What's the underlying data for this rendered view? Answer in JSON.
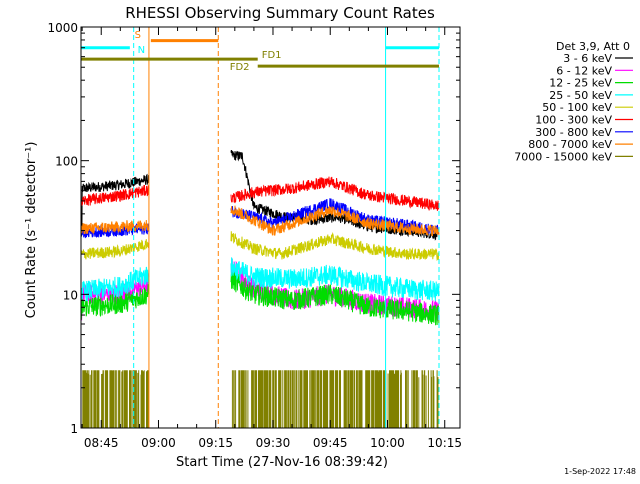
{
  "chart_data": {
    "type": "line",
    "title": "RHESSI Observing Summary Count Rates",
    "xlabel": "Start Time (27-Nov-16 08:39:42)",
    "ylabel": "Count Rate (s⁻¹ detector⁻¹)",
    "yscale": "log",
    "ylim": [
      1,
      1000
    ],
    "xlim_minutes": [
      "08:39:42",
      "10:19:00"
    ],
    "x_tick_labels": [
      "08:45",
      "09:00",
      "09:15",
      "09:30",
      "09:45",
      "10:00",
      "10:15"
    ],
    "y_tick_labels": [
      "1",
      "10",
      "100",
      "1000"
    ],
    "legend": {
      "header": "Det 3,9, Att 0",
      "position": "right",
      "entries": [
        {
          "label": "3 - 6 keV",
          "color": "#000000"
        },
        {
          "label": "6 - 12 keV",
          "color": "#ff00ff"
        },
        {
          "label": "12 - 25 keV",
          "color": "#00dd00"
        },
        {
          "label": "25 - 50 keV",
          "color": "#00ffff"
        },
        {
          "label": "50 - 100 keV",
          "color": "#cccc00"
        },
        {
          "label": "100 - 300 keV",
          "color": "#ff0000"
        },
        {
          "label": "300 - 800 keV",
          "color": "#0000ff"
        },
        {
          "label": "800 - 7000 keV",
          "color": "#ff8000"
        },
        {
          "label": "7000 - 15000 keV",
          "color": "#808000"
        }
      ]
    },
    "annotations": {
      "S": "S",
      "N": "N",
      "FD1": "FD1",
      "FD2": "FD2",
      "timestamp": "1-Sep-2022 17:48"
    },
    "segments": [
      {
        "start": "08:39:42",
        "end": "08:57:30"
      },
      {
        "start": "09:19:00",
        "end": "10:13:30"
      }
    ],
    "series": [
      {
        "name": "3 - 6 keV",
        "color": "#000000",
        "points": [
          [
            "08:40",
            62
          ],
          [
            "08:50",
            66
          ],
          [
            "08:57",
            72
          ],
          [
            "09:19",
            110
          ],
          [
            "09:22",
            108
          ],
          [
            "09:25",
            45
          ],
          [
            "09:33",
            38
          ],
          [
            "09:40",
            36
          ],
          [
            "09:47",
            38
          ],
          [
            "09:55",
            32
          ],
          [
            "10:05",
            30
          ],
          [
            "10:13",
            28
          ]
        ]
      },
      {
        "name": "6 - 12 keV",
        "color": "#ff00ff",
        "points": [
          [
            "08:40",
            10
          ],
          [
            "08:50",
            10
          ],
          [
            "08:57",
            12
          ],
          [
            "09:19",
            16
          ],
          [
            "09:25",
            11
          ],
          [
            "09:35",
            9
          ],
          [
            "09:45",
            10
          ],
          [
            "09:55",
            8.5
          ],
          [
            "10:05",
            8
          ],
          [
            "10:13",
            7.5
          ]
        ]
      },
      {
        "name": "12 - 25 keV",
        "color": "#00dd00",
        "points": [
          [
            "08:40",
            8
          ],
          [
            "08:50",
            8.5
          ],
          [
            "08:57",
            10
          ],
          [
            "09:19",
            13
          ],
          [
            "09:25",
            10
          ],
          [
            "09:35",
            9
          ],
          [
            "09:45",
            10
          ],
          [
            "09:55",
            8
          ],
          [
            "10:05",
            7.5
          ],
          [
            "10:13",
            7
          ]
        ]
      },
      {
        "name": "25 - 50 keV",
        "color": "#00ffff",
        "points": [
          [
            "08:40",
            10.5
          ],
          [
            "08:50",
            11.5
          ],
          [
            "08:57",
            14
          ],
          [
            "09:19",
            16
          ],
          [
            "09:25",
            13.5
          ],
          [
            "09:35",
            13
          ],
          [
            "09:45",
            14
          ],
          [
            "09:55",
            12
          ],
          [
            "10:05",
            11
          ],
          [
            "10:13",
            10.5
          ]
        ]
      },
      {
        "name": "50 - 100 keV",
        "color": "#cccc00",
        "points": [
          [
            "08:40",
            20
          ],
          [
            "08:50",
            21
          ],
          [
            "08:57",
            24
          ],
          [
            "09:19",
            27
          ],
          [
            "09:25",
            22
          ],
          [
            "09:32",
            20
          ],
          [
            "09:45",
            26
          ],
          [
            "09:55",
            22
          ],
          [
            "10:05",
            20
          ],
          [
            "10:13",
            20
          ]
        ]
      },
      {
        "name": "100 - 300 keV",
        "color": "#ff0000",
        "points": [
          [
            "08:40",
            50
          ],
          [
            "08:50",
            55
          ],
          [
            "08:57",
            60
          ],
          [
            "09:19",
            52
          ],
          [
            "09:25",
            58
          ],
          [
            "09:35",
            62
          ],
          [
            "09:45",
            70
          ],
          [
            "09:55",
            55
          ],
          [
            "10:05",
            50
          ],
          [
            "10:13",
            46
          ]
        ]
      },
      {
        "name": "300 - 800 keV",
        "color": "#0000ff",
        "points": [
          [
            "08:40",
            29
          ],
          [
            "08:50",
            30
          ],
          [
            "08:57",
            31
          ],
          [
            "09:19",
            42
          ],
          [
            "09:25",
            38
          ],
          [
            "09:30",
            34
          ],
          [
            "09:45",
            48
          ],
          [
            "09:55",
            36
          ],
          [
            "10:05",
            33
          ],
          [
            "10:13",
            30
          ]
        ]
      },
      {
        "name": "800 - 7000 keV",
        "color": "#ff8000",
        "points": [
          [
            "08:40",
            31
          ],
          [
            "08:50",
            32
          ],
          [
            "08:57",
            33
          ],
          [
            "09:19",
            44
          ],
          [
            "09:25",
            36
          ],
          [
            "09:30",
            30
          ],
          [
            "09:45",
            43
          ],
          [
            "09:55",
            34
          ],
          [
            "10:05",
            31
          ],
          [
            "10:13",
            30
          ]
        ]
      },
      {
        "name": "7000 - 15000 keV",
        "color": "#808000",
        "points": [
          [
            "08:40",
            1.6
          ],
          [
            "08:57",
            1.6
          ],
          [
            "09:35",
            1.8
          ],
          [
            "09:50",
            1.8
          ],
          [
            "10:13",
            1.5
          ]
        ]
      }
    ],
    "vertical_markers": [
      {
        "time": "08:39:42",
        "color": "#00ffff",
        "style": "solid"
      },
      {
        "time": "08:53:30",
        "color": "#00ffff",
        "style": "dashed"
      },
      {
        "time": "08:57:30",
        "color": "#ff8000",
        "style": "solid"
      },
      {
        "time": "09:15:40",
        "color": "#ff8000",
        "style": "dashed"
      },
      {
        "time": "09:59:30",
        "color": "#00ffff",
        "style": "solid"
      },
      {
        "time": "10:13:30",
        "color": "#00ffff",
        "style": "dashed"
      }
    ],
    "top_bars": [
      {
        "label_key": "N",
        "color": "#00ffff",
        "y": 700,
        "start": "08:39:42",
        "end": "08:52:30"
      },
      {
        "label_key": "S",
        "color": "#ff8000",
        "y": 790,
        "start": "08:58:00",
        "end": "09:15:40"
      },
      {
        "label_key": "N",
        "color": "#00ffff",
        "y": 700,
        "start": "09:59:30",
        "end": "10:13:30"
      },
      {
        "label_key": "FD1",
        "color": "#808000",
        "y": 575,
        "start": "08:39:42",
        "end": "09:26:00"
      },
      {
        "label_key": "FD2",
        "color": "#808000",
        "y": 510,
        "start": "09:26:00",
        "end": "10:13:30"
      }
    ]
  }
}
